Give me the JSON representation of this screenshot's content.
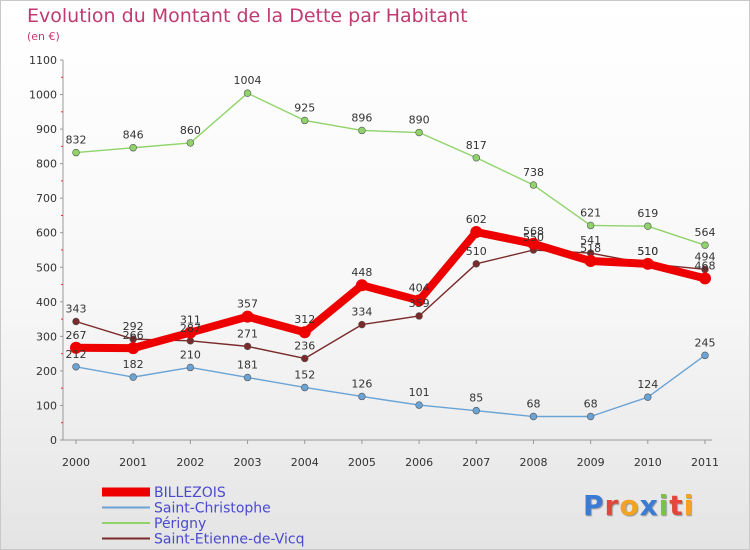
{
  "header": {
    "title": "Evolution du Montant de la Dette par Habitant",
    "subtitle": "(en €)"
  },
  "logo": {
    "text": "Proxiti",
    "colors": [
      "#3a7bd5",
      "#e2473b",
      "#f2a420",
      "#3a7bd5",
      "#7cc242",
      "#e2473b",
      "#f2a420"
    ]
  },
  "chart_data": {
    "type": "line",
    "x": [
      "2000",
      "2001",
      "2002",
      "2003",
      "2004",
      "2005",
      "2006",
      "2007",
      "2008",
      "2009",
      "2010",
      "2011"
    ],
    "ylim": [
      0,
      1100
    ],
    "yticks": [
      0,
      100,
      200,
      300,
      400,
      500,
      600,
      700,
      800,
      900,
      1000,
      1100
    ],
    "grid": false,
    "legend": "bottom-left",
    "series": [
      {
        "name": "BILLEZOIS",
        "color": "#ee0000",
        "values": [
          267,
          266,
          311,
          357,
          312,
          448,
          404,
          602,
          568,
          518,
          510,
          468
        ]
      },
      {
        "name": "Saint-Christophe",
        "color": "#6aa3d5",
        "values": [
          212,
          182,
          210,
          181,
          152,
          126,
          101,
          85,
          68,
          68,
          124,
          245
        ]
      },
      {
        "name": "Périgny",
        "color": "#8fd36a",
        "values": [
          832,
          846,
          860,
          1004,
          925,
          896,
          890,
          817,
          738,
          621,
          619,
          564
        ]
      },
      {
        "name": "Saint-Etienne-de-Vicq",
        "color": "#7a2a2a",
        "values": [
          343,
          292,
          287,
          271,
          236,
          334,
          359,
          510,
          550,
          541,
          510,
          494
        ]
      }
    ]
  }
}
